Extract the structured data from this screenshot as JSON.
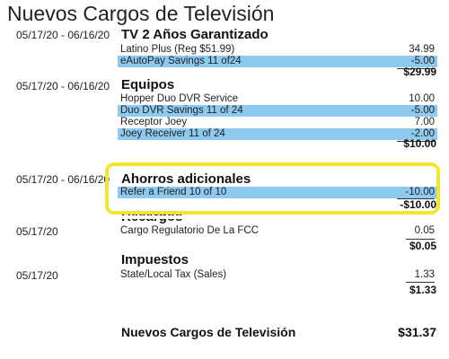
{
  "title": "Nuevos Cargos de Televisión",
  "sections": [
    {
      "date": "05/17/20 - 06/16/20",
      "heading": "TV 2 Años Garantizado",
      "rows": [
        {
          "label": "Latino Plus (Reg $51.99)",
          "amount": "34.99",
          "highlight": false
        },
        {
          "label": "eAutoPay Savings 11 of24",
          "amount": "-5.00",
          "highlight": true
        }
      ],
      "total": "$29.99"
    },
    {
      "date": "05/17/20 - 06/16/20",
      "heading": "Equipos",
      "rows": [
        {
          "label": "Hopper Duo DVR Service",
          "amount": "10.00",
          "highlight": false
        },
        {
          "label": "Duo DVR Savings 11 of 24",
          "amount": "-5.00",
          "highlight": true
        },
        {
          "label": "Receptor Joey",
          "amount": "7.00",
          "highlight": false
        },
        {
          "label": "Joey Receiver 11 of 24",
          "amount": "-2.00",
          "highlight": true
        }
      ],
      "total": "$10.00"
    },
    {
      "date": "05/17/20 - 06/16/20",
      "heading": "Ahorros adicionales",
      "rows": [
        {
          "label": "Refer a Friend 10 of 10",
          "amount": "-10.00",
          "highlight": true
        }
      ],
      "total": "-$10.00"
    },
    {
      "date": "05/17/20",
      "heading": "Recargos",
      "rows": [
        {
          "label": "Cargo Regulatorio De La FCC",
          "amount": "0.05",
          "highlight": false
        }
      ],
      "total": "$0.05"
    },
    {
      "date": "05/17/20",
      "heading": "Impuestos",
      "rows": [
        {
          "label": "State/Local Tax (Sales)",
          "amount": "1.33",
          "highlight": false
        }
      ],
      "total": "$1.33"
    }
  ],
  "grand_total": {
    "label": "Nuevos Cargos de Televisión",
    "amount": "$31.37"
  },
  "colors": {
    "row_highlight": "#8ec9f0",
    "callout_border": "#f2e630"
  }
}
